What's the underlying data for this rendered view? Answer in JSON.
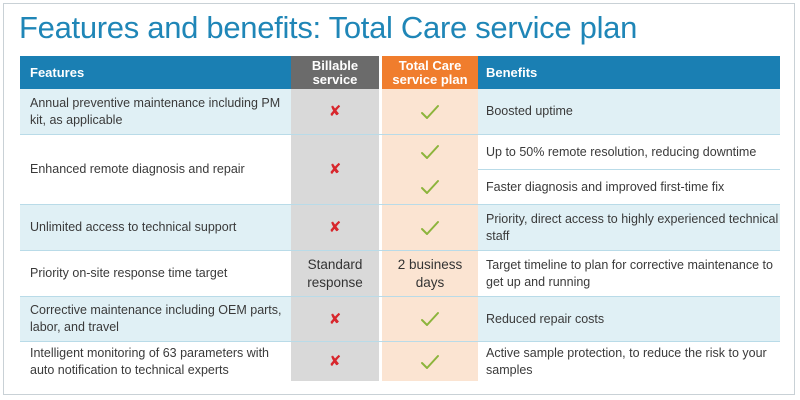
{
  "title": "Features and benefits: Total Care service plan",
  "headers": {
    "features": "Features",
    "billable_line1": "Billable",
    "billable_line2": "service",
    "totalcare_line1": "Total Care",
    "totalcare_line2": "service plan",
    "benefits": "Benefits"
  },
  "rows": [
    {
      "feature": "Annual preventive maintenance including PM kit, as applicable",
      "billable": "x-icon",
      "totalcare": "check-icon",
      "benefits": [
        "Boosted uptime"
      ]
    },
    {
      "feature": "Enhanced remote diagnosis and repair",
      "billable": "x-icon",
      "totalcare": "check-icon",
      "benefits": [
        "Up to 50% remote resolution, reducing downtime",
        "Faster diagnosis and improved first-time fix"
      ]
    },
    {
      "feature": "Unlimited access to technical support",
      "billable": "x-icon",
      "totalcare": "check-icon",
      "benefits": [
        "Priority, direct access to highly experienced technical staff"
      ]
    },
    {
      "feature": "Priority on-site response time target",
      "billable_text": "Standard response",
      "totalcare_text": "2 business days",
      "benefits": [
        "Target timeline to plan for corrective maintenance to get up and running"
      ]
    },
    {
      "feature": "Corrective maintenance including OEM parts, labor, and travel",
      "billable": "x-icon",
      "totalcare": "check-icon",
      "benefits": [
        "Reduced repair costs"
      ]
    },
    {
      "feature": "Intelligent monitoring of 63 parameters with auto notification to technical experts",
      "billable": "x-icon",
      "totalcare": "check-icon",
      "benefits": [
        "Active sample protection, to reduce the risk to your samples"
      ]
    }
  ],
  "icons": {
    "x_glyph": "✘",
    "x_color": "#d8272d",
    "check_color": "#8cb43c"
  },
  "colors": {
    "title": "#1f86b7",
    "header_blue": "#1a7fb3",
    "header_gray": "#6b6b6b",
    "header_orange": "#f07d2d",
    "row_shade": "#e0f0f5"
  }
}
